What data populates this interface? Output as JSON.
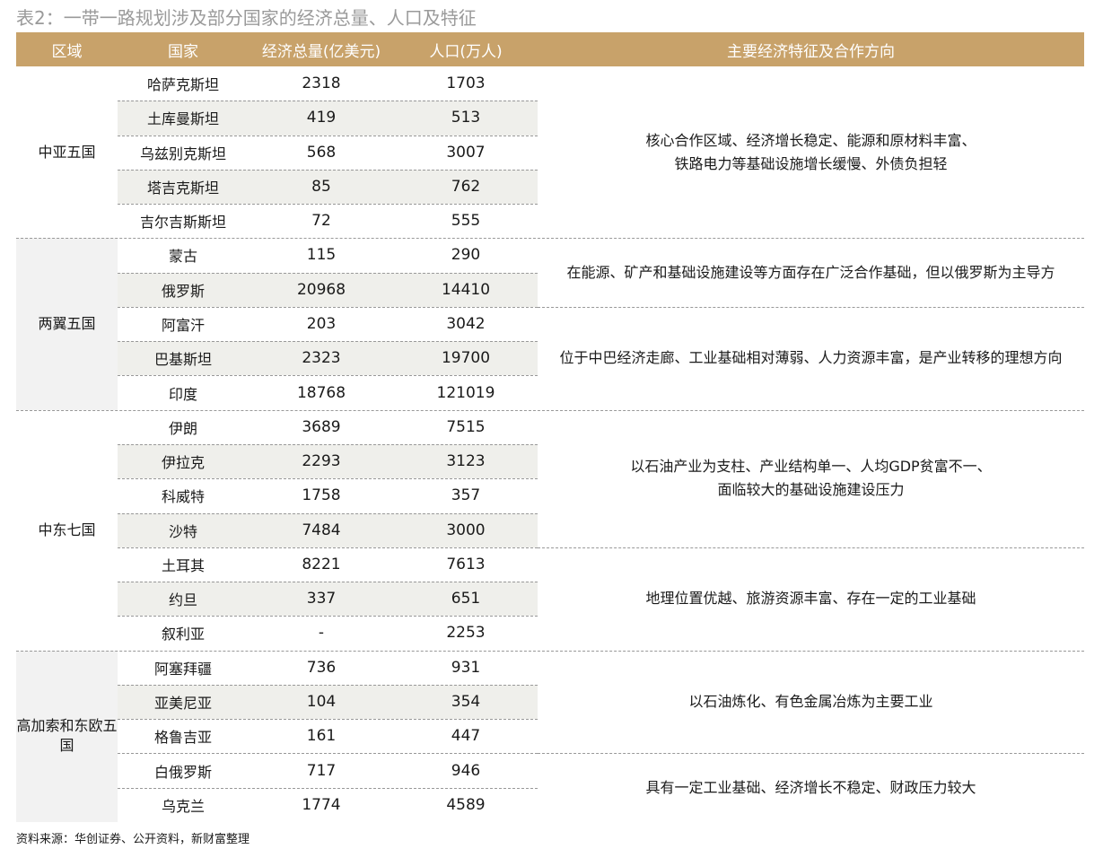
{
  "title": "表2：一带一路规划涉及部分国家的经济总量、人口及特征",
  "headers": [
    "区域",
    "国家",
    "经济总量(亿美元)",
    "人口(万人)",
    "主要经济特征及合作方向"
  ],
  "rows": [
    {
      "country": "哈萨克斯坦",
      "gdp": "2318",
      "pop": "1703"
    },
    {
      "country": "土库曼斯坦",
      "gdp": "419",
      "pop": "513"
    },
    {
      "country": "乌兹别克斯坦",
      "gdp": "568",
      "pop": "3007"
    },
    {
      "country": "塔吉克斯坦",
      "gdp": "85",
      "pop": "762"
    },
    {
      "country": "吉尔吉斯斯坦",
      "gdp": "72",
      "pop": "555"
    },
    {
      "country": "蒙古",
      "gdp": "115",
      "pop": "290"
    },
    {
      "country": "俄罗斯",
      "gdp": "20968",
      "pop": "14410"
    },
    {
      "country": "阿富汗",
      "gdp": "203",
      "pop": "3042"
    },
    {
      "country": "巴基斯坦",
      "gdp": "2323",
      "pop": "19700"
    },
    {
      "country": "印度",
      "gdp": "18768",
      "pop": "121019"
    },
    {
      "country": "伊朗",
      "gdp": "3689",
      "pop": "7515"
    },
    {
      "country": "伊拉克",
      "gdp": "2293",
      "pop": "3123"
    },
    {
      "country": "科威特",
      "gdp": "1758",
      "pop": "357"
    },
    {
      "country": "沙特",
      "gdp": "7484",
      "pop": "3000"
    },
    {
      "country": "土耳其",
      "gdp": "8221",
      "pop": "7613"
    },
    {
      "country": "约旦",
      "gdp": "337",
      "pop": "651"
    },
    {
      "country": "叙利亚",
      "gdp": "-",
      "pop": "2253"
    },
    {
      "country": "阿塞拜疆",
      "gdp": "736",
      "pop": "931"
    },
    {
      "country": "亚美尼亚",
      "gdp": "104",
      "pop": "354"
    },
    {
      "country": "格鲁吉亚",
      "gdp": "161",
      "pop": "447"
    },
    {
      "country": "白俄罗斯",
      "gdp": "717",
      "pop": "946"
    },
    {
      "country": "乌克兰",
      "gdp": "1774",
      "pop": "4589"
    }
  ],
  "regions": [
    {
      "name": "中亚五国"
    },
    {
      "name": "两翼五国"
    },
    {
      "name": "中东七国"
    },
    {
      "name": "高加索和东欧五国"
    }
  ],
  "features": [
    {
      "text": "核心合作区域、经济增长稳定、能源和原材料丰富、\n铁路电力等基础设施增长缓慢、外债负担轻"
    },
    {
      "text": "在能源、矿产和基础设施建设等方面存在广泛合作基础，但以俄罗斯为主导方"
    },
    {
      "text": "位于中巴经济走廊、工业基础相对薄弱、人力资源丰富，是产业转移的理想方向"
    },
    {
      "text": "以石油产业为支柱、产业结构单一、人均GDP贫富不一、\n面临较大的基础设施建设压力"
    },
    {
      "text": "地理位置优越、旅游资源丰富、存在一定的工业基础"
    },
    {
      "text": "以石油炼化、有色金属冶炼为主要工业"
    },
    {
      "text": "具有一定工业基础、经济增长不稳定、财政压力较大"
    }
  ],
  "source": "资料来源：华创证券、公开资料，新财富整理",
  "colors": {
    "header_bg": "#c8a26a",
    "header_text": "#ffffff",
    "shade": "#efefeb",
    "title": "#9a9a9a"
  }
}
